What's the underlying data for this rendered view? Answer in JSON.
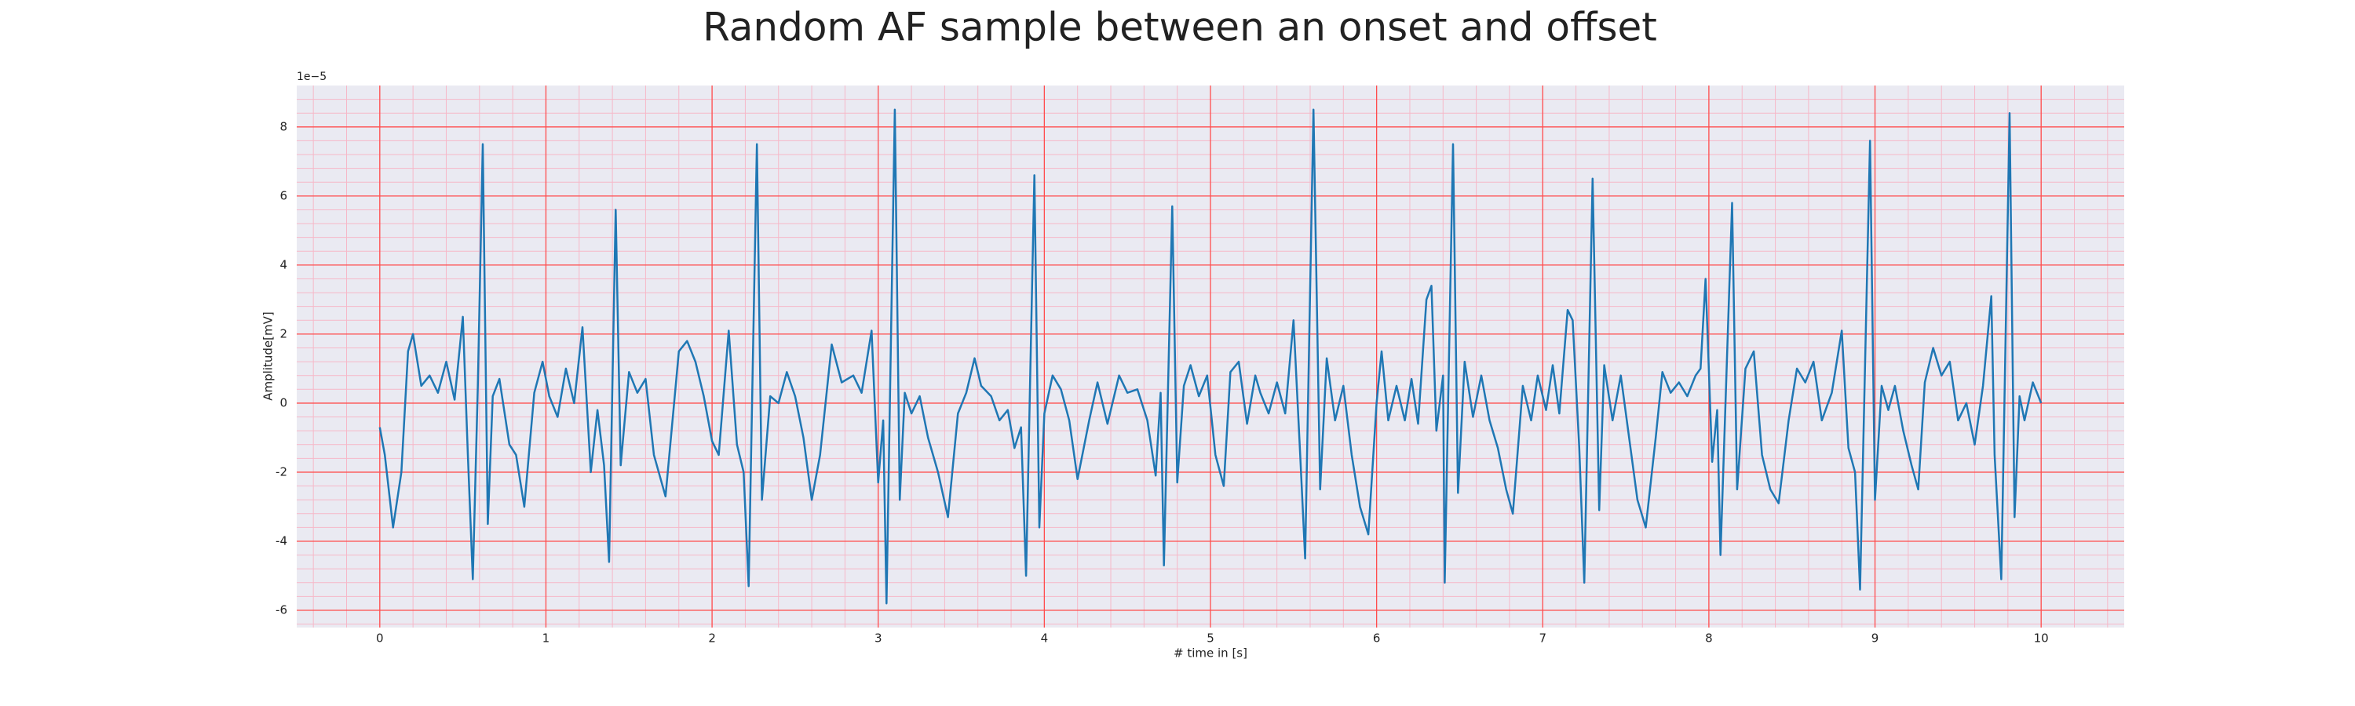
{
  "chart_data": {
    "type": "line",
    "title": "Random AF sample between an onset and offset",
    "xlabel": "# time in [s]",
    "ylabel": "Amplitude[mV]",
    "y_offset_label": "1e−5",
    "xlim": [
      -0.5,
      10.5
    ],
    "ylim": [
      -6.5,
      9.2
    ],
    "xticks": [
      0,
      1,
      2,
      3,
      4,
      5,
      6,
      7,
      8,
      9,
      10
    ],
    "yticks": [
      -6,
      -4,
      -2,
      0,
      2,
      4,
      6,
      8
    ],
    "grid": true,
    "minor_grid": true,
    "grid_color": "#ff4d4d",
    "minor_grid_color": "#f6b8c8",
    "face_color": "#eaeaf2",
    "series": [
      {
        "name": "AF sample",
        "color": "#1f77b4",
        "x": [
          0,
          0.03,
          0.08,
          0.13,
          0.17,
          0.2,
          0.25,
          0.3,
          0.35,
          0.4,
          0.45,
          0.5,
          0.53,
          0.56,
          0.59,
          0.62,
          0.65,
          0.68,
          0.72,
          0.78,
          0.82,
          0.87,
          0.93,
          0.98,
          1.02,
          1.07,
          1.12,
          1.17,
          1.22,
          1.27,
          1.31,
          1.35,
          1.38,
          1.42,
          1.45,
          1.5,
          1.55,
          1.6,
          1.65,
          1.72,
          1.8,
          1.85,
          1.9,
          1.95,
          2.0,
          2.04,
          2.1,
          2.15,
          2.19,
          2.22,
          2.27,
          2.3,
          2.35,
          2.4,
          2.45,
          2.5,
          2.55,
          2.6,
          2.65,
          2.72,
          2.78,
          2.85,
          2.9,
          2.96,
          3.0,
          3.03,
          3.05,
          3.1,
          3.13,
          3.16,
          3.2,
          3.25,
          3.3,
          3.36,
          3.42,
          3.48,
          3.53,
          3.58,
          3.62,
          3.68,
          3.73,
          3.78,
          3.82,
          3.86,
          3.89,
          3.94,
          3.97,
          4.0,
          4.05,
          4.1,
          4.15,
          4.2,
          4.27,
          4.32,
          4.38,
          4.45,
          4.5,
          4.56,
          4.62,
          4.67,
          4.7,
          4.72,
          4.77,
          4.8,
          4.84,
          4.88,
          4.93,
          4.98,
          5.03,
          5.08,
          5.12,
          5.17,
          5.22,
          5.27,
          5.3,
          5.35,
          5.4,
          5.45,
          5.5,
          5.54,
          5.57,
          5.62,
          5.66,
          5.7,
          5.75,
          5.8,
          5.85,
          5.9,
          5.95,
          6.0,
          6.03,
          6.07,
          6.12,
          6.17,
          6.21,
          6.25,
          6.3,
          6.33,
          6.36,
          6.4,
          6.41,
          6.46,
          6.49,
          6.53,
          6.58,
          6.63,
          6.68,
          6.73,
          6.78,
          6.82,
          6.88,
          6.93,
          6.97,
          7.02,
          7.06,
          7.1,
          7.15,
          7.18,
          7.22,
          7.25,
          7.3,
          7.34,
          7.37,
          7.42,
          7.47,
          7.52,
          7.57,
          7.62,
          7.68,
          7.72,
          7.77,
          7.82,
          7.87,
          7.92,
          7.95,
          7.98,
          8.02,
          8.05,
          8.07,
          8.14,
          8.17,
          8.22,
          8.27,
          8.32,
          8.37,
          8.42,
          8.48,
          8.53,
          8.58,
          8.63,
          8.68,
          8.74,
          8.8,
          8.84,
          8.88,
          8.91,
          8.97,
          9.0,
          9.04,
          9.08,
          9.12,
          9.17,
          9.22,
          9.26,
          9.3,
          9.35,
          9.4,
          9.45,
          9.5,
          9.55,
          9.6,
          9.65,
          9.7,
          9.72,
          9.76,
          9.81,
          9.84,
          9.87,
          9.9,
          9.95,
          10.0
        ],
        "values": [
          -0.7,
          -1.5,
          -3.6,
          -2.0,
          1.5,
          2.0,
          0.5,
          0.8,
          0.3,
          1.2,
          0.1,
          2.5,
          -1.5,
          -5.1,
          0.5,
          7.5,
          -3.5,
          0.2,
          0.7,
          -1.2,
          -1.5,
          -3.0,
          0.3,
          1.2,
          0.2,
          -0.4,
          1.0,
          0.0,
          2.2,
          -2.0,
          -0.2,
          -1.8,
          -4.6,
          5.6,
          -1.8,
          0.9,
          0.3,
          0.7,
          -1.5,
          -2.7,
          1.5,
          1.8,
          1.2,
          0.2,
          -1.1,
          -1.5,
          2.1,
          -1.2,
          -2.0,
          -5.3,
          7.5,
          -2.8,
          0.2,
          0.0,
          0.9,
          0.2,
          -1.0,
          -2.8,
          -1.5,
          1.7,
          0.6,
          0.8,
          0.3,
          2.1,
          -2.3,
          -0.5,
          -5.8,
          8.5,
          -2.8,
          0.3,
          -0.3,
          0.2,
          -1.0,
          -2.0,
          -3.3,
          -0.3,
          0.3,
          1.3,
          0.5,
          0.2,
          -0.5,
          -0.2,
          -1.3,
          -0.7,
          -5.0,
          6.6,
          -3.6,
          -0.3,
          0.8,
          0.4,
          -0.5,
          -2.2,
          -0.5,
          0.6,
          -0.6,
          0.8,
          0.3,
          0.4,
          -0.5,
          -2.1,
          0.3,
          -4.7,
          5.7,
          -2.3,
          0.5,
          1.1,
          0.2,
          0.8,
          -1.5,
          -2.4,
          0.9,
          1.2,
          -0.6,
          0.8,
          0.3,
          -0.3,
          0.6,
          -0.3,
          2.4,
          -1.5,
          -4.5,
          8.5,
          -2.5,
          1.3,
          -0.5,
          0.5,
          -1.5,
          -3.0,
          -3.8,
          0.0,
          1.5,
          -0.5,
          0.5,
          -0.5,
          0.7,
          -0.6,
          3.0,
          3.4,
          -0.8,
          0.8,
          -5.2,
          7.5,
          -2.6,
          1.2,
          -0.4,
          0.8,
          -0.5,
          -1.3,
          -2.5,
          -3.2,
          0.5,
          -0.5,
          0.8,
          -0.2,
          1.1,
          -0.3,
          2.7,
          2.4,
          -1.3,
          -5.2,
          6.5,
          -3.1,
          1.1,
          -0.5,
          0.8,
          -1.0,
          -2.8,
          -3.6,
          -1.0,
          0.9,
          0.3,
          0.6,
          0.2,
          0.8,
          1.0,
          3.6,
          -1.7,
          -0.2,
          -4.4,
          5.8,
          -2.5,
          1.0,
          1.5,
          -1.5,
          -2.5,
          -2.9,
          -0.5,
          1.0,
          0.6,
          1.2,
          -0.5,
          0.3,
          2.1,
          -1.3,
          -2.0,
          -5.4,
          7.6,
          -2.8,
          0.5,
          -0.2,
          0.5,
          -0.8,
          -1.8,
          -2.5,
          0.6,
          1.6,
          0.8,
          1.2,
          -0.5,
          0.0,
          -1.2,
          0.5,
          3.1,
          -1.5,
          -5.1,
          8.4,
          -3.3,
          0.2,
          -0.5,
          0.6,
          0.0
        ]
      }
    ]
  }
}
